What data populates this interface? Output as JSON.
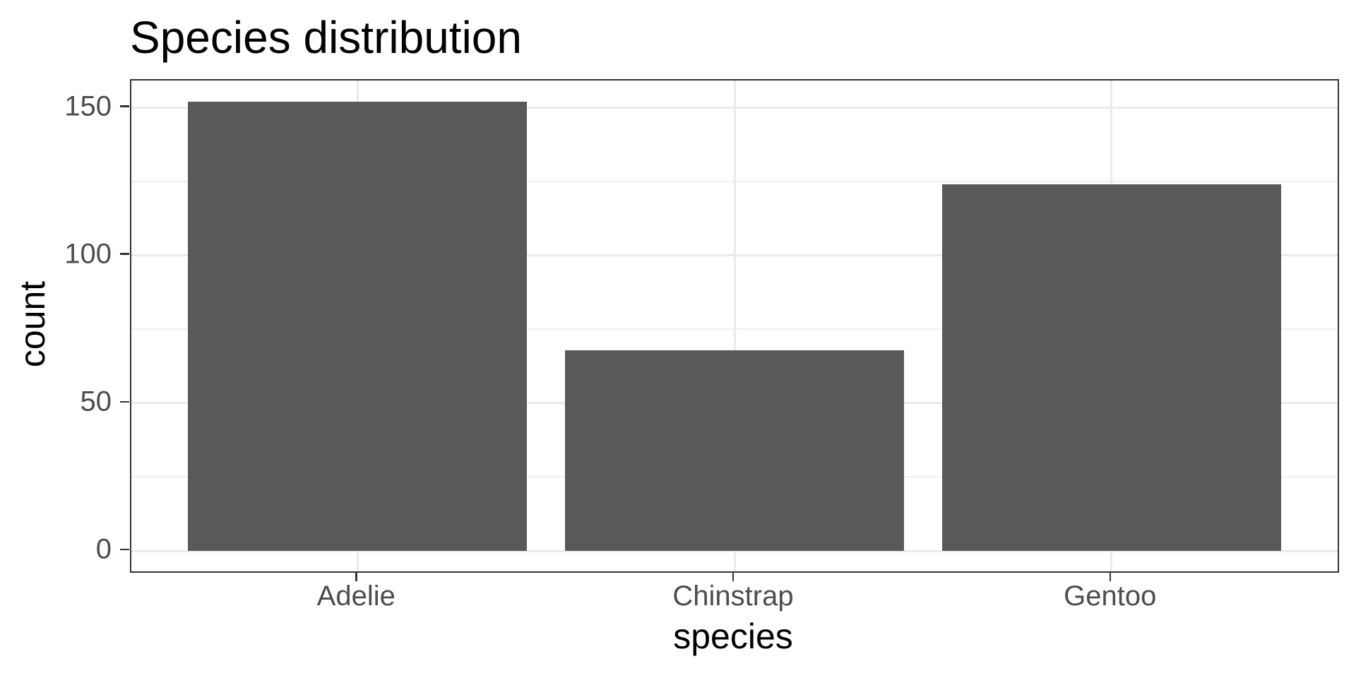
{
  "chart_data": {
    "type": "bar",
    "title": "Species distribution",
    "xlabel": "species",
    "ylabel": "count",
    "categories": [
      "Adelie",
      "Chinstrap",
      "Gentoo"
    ],
    "values": [
      152,
      68,
      124
    ],
    "y_ticks": [
      0,
      50,
      100,
      150
    ],
    "y_minor_ticks": [
      25,
      75,
      125
    ],
    "ylim": [
      0,
      159.6
    ],
    "grid": "on",
    "legend": "none",
    "bar_color": "#595959",
    "panel_border_color": "#333333",
    "major_grid_color": "#eaeaea",
    "minor_grid_color": "#efefef",
    "axis_text_color": "#4d4d4d",
    "title_color": "#000000",
    "background_color": "#ffffff"
  }
}
